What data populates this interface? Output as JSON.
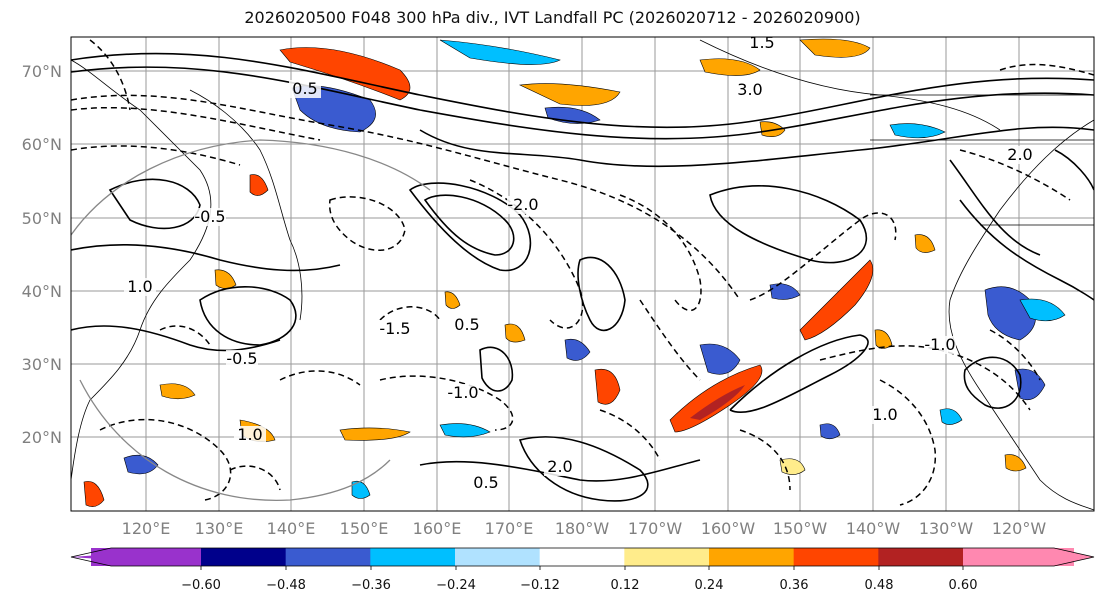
{
  "title": "2026020500 F048 300 hPa div., IVT Landfall PC (2026020712 - 2026020900)",
  "map": {
    "lat_labels": [
      "70°N",
      "60°N",
      "50°N",
      "40°N",
      "30°N",
      "20°N"
    ],
    "lon_labels": [
      "120°E",
      "130°E",
      "140°E",
      "150°E",
      "160°E",
      "170°E",
      "180°W",
      "170°W",
      "160°W",
      "150°W",
      "140°W",
      "130°W",
      "120°W"
    ],
    "contour_labels": [
      "1.0",
      "0.5",
      "-0.5",
      "-1.0",
      "2.0",
      "-2.0",
      "1.5",
      "3.0",
      "-1.5",
      "0.5",
      "1.0",
      "-0.5",
      "2.0",
      "-1.0",
      "0.5",
      "1.0"
    ],
    "colors": {
      "land_outline": "#000000",
      "grid": "#9a9a9a",
      "contour": "#000000"
    }
  },
  "colorbar": {
    "tick_labels": [
      "−0.60",
      "−0.48",
      "−0.36",
      "−0.24",
      "−0.12",
      "0.12",
      "0.24",
      "0.36",
      "0.48",
      "0.60"
    ],
    "colors": [
      "#9932cc",
      "#00008b",
      "#3a5bd0",
      "#00bfff",
      "#b0e2ff",
      "#ffffff",
      "#ffec8b",
      "#ffa500",
      "#ff4500",
      "#b22222",
      "#ff88b0"
    ]
  }
}
